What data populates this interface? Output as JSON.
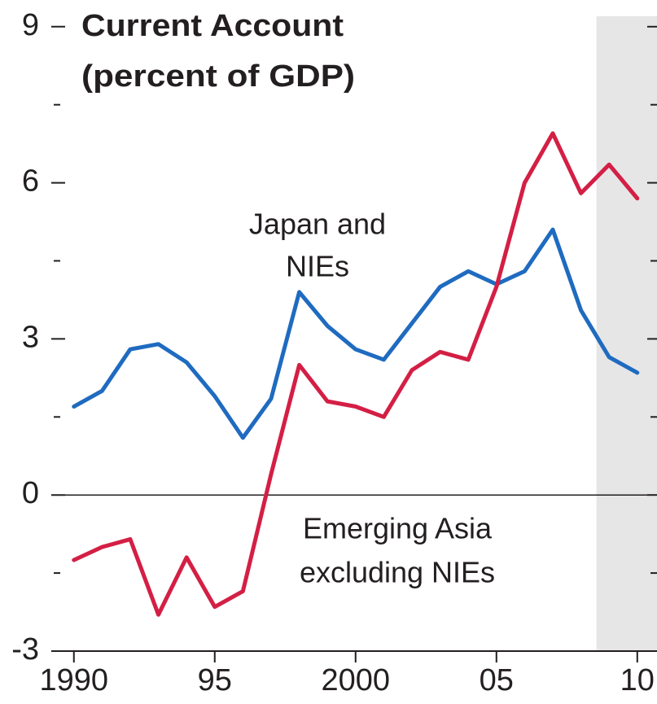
{
  "chart_data": {
    "type": "line",
    "title": "Current Account",
    "subtitle": "(percent of GDP)",
    "x": [
      1990,
      1991,
      1992,
      1993,
      1994,
      1995,
      1996,
      1997,
      1998,
      1999,
      2000,
      2001,
      2002,
      2003,
      2004,
      2005,
      2006,
      2007,
      2008,
      2009,
      2010
    ],
    "series": [
      {
        "label": [
          "Japan and",
          "NIEs"
        ],
        "color": "#1f6bc0",
        "values": [
          1.7,
          2.0,
          2.8,
          2.9,
          2.55,
          1.9,
          1.1,
          1.85,
          3.9,
          3.25,
          2.8,
          2.6,
          3.3,
          4.0,
          4.3,
          4.05,
          4.3,
          5.1,
          3.55,
          2.65,
          2.35
        ]
      },
      {
        "label": [
          "Emerging Asia",
          "excluding NIEs"
        ],
        "color": "#d41f45",
        "values": [
          -1.25,
          -1.0,
          -0.85,
          -2.3,
          -1.2,
          -2.15,
          -1.85,
          0.4,
          2.5,
          1.8,
          1.7,
          1.5,
          2.4,
          2.75,
          2.6,
          4.0,
          6.0,
          6.95,
          5.8,
          6.35,
          5.7
        ]
      }
    ],
    "xlim": [
      1989.4,
      2010.7
    ],
    "xticks": [
      1990,
      {
        "value": 1995,
        "label": "95"
      },
      2000,
      {
        "value": 2005,
        "label": "05"
      },
      {
        "value": 2010,
        "label": "10"
      }
    ],
    "ylim": [
      -3,
      9.2
    ],
    "yticks": [
      -3,
      0,
      3,
      6,
      9
    ],
    "yminor_ticks": [
      -1.5,
      1.5,
      4.5,
      7.5
    ],
    "shaded_xrange": [
      2008.55,
      2010.7
    ],
    "shade_color": "#e6e6e6"
  }
}
